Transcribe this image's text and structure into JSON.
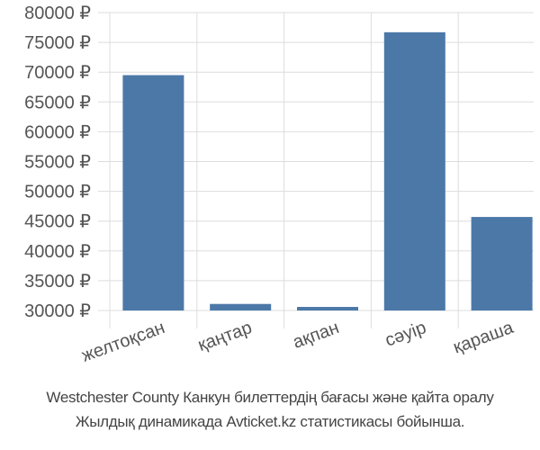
{
  "chart_data": {
    "type": "bar",
    "categories": [
      "желтоқсан",
      "қаңтар",
      "ақпан",
      "сәуір",
      "қараша"
    ],
    "series": [
      {
        "values": [
          69500,
          31100,
          30600,
          76700,
          45700
        ]
      }
    ],
    "ylim": [
      30000,
      80000
    ],
    "yticks": [
      "30000 ₽",
      "35000 ₽",
      "40000 ₽",
      "45000 ₽",
      "50000 ₽",
      "55000 ₽",
      "60000 ₽",
      "65000 ₽",
      "70000 ₽",
      "75000 ₽",
      "80000 ₽"
    ],
    "ytick_values": [
      30000,
      35000,
      40000,
      45000,
      50000,
      55000,
      60000,
      65000,
      70000,
      75000,
      80000
    ],
    "grid": true,
    "bar_color": "#4c78a8",
    "grid_color": "#dddddd",
    "legend": false
  },
  "caption": {
    "line1": "Westchester County Канкун билеттердің бағасы және қайта оралу",
    "line2": "Жылдық динамикада Avticket.kz статистикасы бойынша."
  }
}
